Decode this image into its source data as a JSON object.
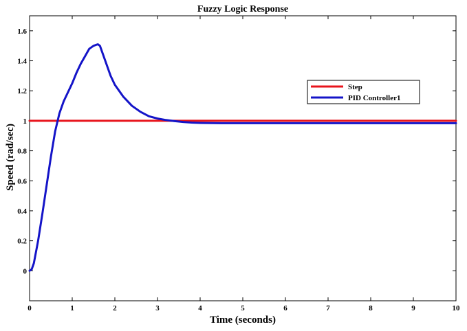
{
  "chart_data": {
    "type": "line",
    "title": "Fuzzy Logic Response",
    "xlabel": "Time (seconds)",
    "ylabel": "Speed (rad/sec)",
    "xlim": [
      0,
      10
    ],
    "ylim": [
      -0.2,
      1.7
    ],
    "xticks": [
      0,
      1,
      2,
      3,
      4,
      5,
      6,
      7,
      8,
      9,
      10
    ],
    "yticks": [
      0,
      0.2,
      0.4,
      0.6,
      0.8,
      1,
      1.2,
      1.4,
      1.6
    ],
    "xtick_labels": [
      "0",
      "1",
      "2",
      "3",
      "4",
      "5",
      "6",
      "7",
      "8",
      "9",
      "10"
    ],
    "ytick_labels": [
      "0",
      "0.2",
      "0.4",
      "0.6",
      "0.8",
      "1",
      "1.2",
      "1.4",
      "1.6"
    ],
    "grid": false,
    "legend_position": "right",
    "series": [
      {
        "name": "Step",
        "color": "#e8141c",
        "x": [
          0,
          10
        ],
        "y": [
          1.0,
          1.0
        ]
      },
      {
        "name": "PID Controller1",
        "color": "#1414c8",
        "x": [
          0,
          0.05,
          0.1,
          0.2,
          0.3,
          0.4,
          0.5,
          0.6,
          0.7,
          0.8,
          0.9,
          1.0,
          1.1,
          1.2,
          1.3,
          1.4,
          1.5,
          1.6,
          1.65,
          1.7,
          1.8,
          1.9,
          2.0,
          2.2,
          2.4,
          2.6,
          2.8,
          3.0,
          3.2,
          3.4,
          3.6,
          3.8,
          4.0,
          4.5,
          5.0,
          6.0,
          7.0,
          8.0,
          9.0,
          10.0
        ],
        "y": [
          0,
          0.01,
          0.05,
          0.2,
          0.38,
          0.57,
          0.76,
          0.93,
          1.05,
          1.13,
          1.19,
          1.25,
          1.32,
          1.38,
          1.43,
          1.48,
          1.5,
          1.51,
          1.5,
          1.46,
          1.38,
          1.3,
          1.24,
          1.16,
          1.1,
          1.06,
          1.03,
          1.015,
          1.005,
          0.998,
          0.992,
          0.988,
          0.986,
          0.984,
          0.984,
          0.984,
          0.984,
          0.984,
          0.984,
          0.984
        ]
      }
    ]
  }
}
